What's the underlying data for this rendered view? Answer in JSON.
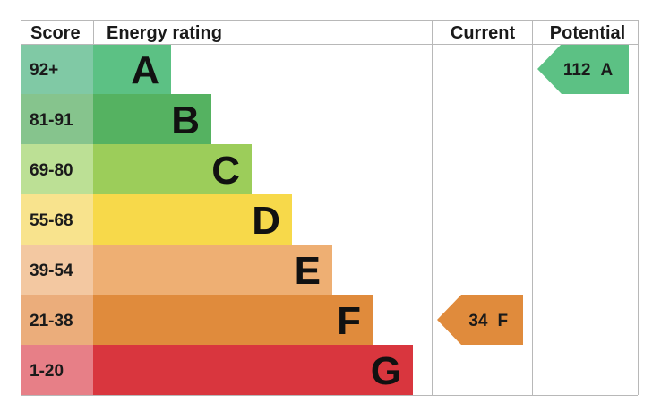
{
  "chart_data": {
    "type": "bar",
    "header": {
      "score": "Score",
      "rating": "Energy rating",
      "current": "Current",
      "potential": "Potential"
    },
    "bands": [
      {
        "score": "92+",
        "letter": "A",
        "value": 1,
        "bar_color": "#5cc184",
        "score_color": "#80c9a5"
      },
      {
        "score": "81-91",
        "letter": "B",
        "value": 2,
        "bar_color": "#55b261",
        "score_color": "#86c48d"
      },
      {
        "score": "69-80",
        "letter": "C",
        "value": 3,
        "bar_color": "#9ccd5a",
        "score_color": "#bce095"
      },
      {
        "score": "55-68",
        "letter": "D",
        "value": 4,
        "bar_color": "#f7d94a",
        "score_color": "#f8e38d"
      },
      {
        "score": "39-54",
        "letter": "E",
        "value": 5,
        "bar_color": "#eeaf73",
        "score_color": "#f3c8a1"
      },
      {
        "score": "21-38",
        "letter": "F",
        "value": 6,
        "bar_color": "#e08b3c",
        "score_color": "#ebad7b"
      },
      {
        "score": "1-20",
        "letter": "G",
        "value": 7,
        "bar_color": "#d9363e",
        "score_color": "#e77f87"
      }
    ],
    "current": {
      "value": 34,
      "band": "F",
      "label": "34",
      "color": "#e08b3c"
    },
    "potential": {
      "value": 112,
      "band": "A",
      "label": "112",
      "color": "#5cc184"
    }
  }
}
